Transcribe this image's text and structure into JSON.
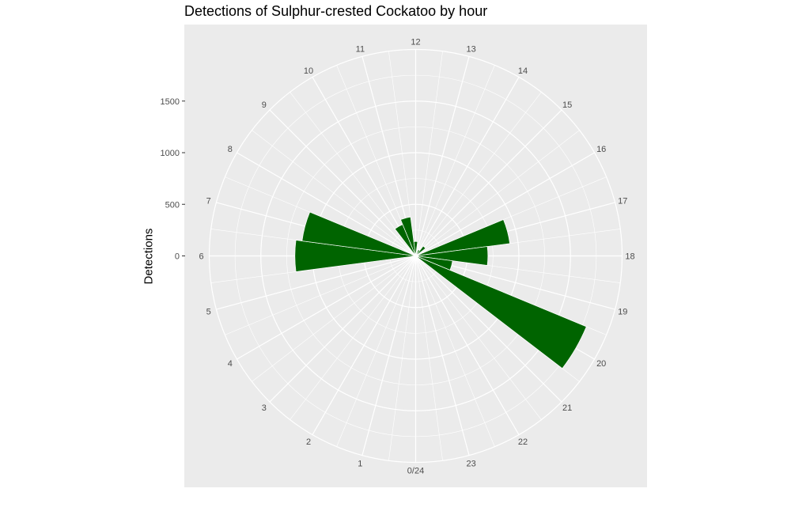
{
  "chart_data": {
    "type": "bar",
    "coord": "polar",
    "title": "Detections of Sulphur-crested Cockatoo by hour",
    "xlabel": "",
    "ylabel": "Detections",
    "categories": [
      "0/24",
      "1",
      "2",
      "3",
      "4",
      "5",
      "6",
      "7",
      "8",
      "9",
      "10",
      "11",
      "12",
      "13",
      "14",
      "15",
      "16",
      "17",
      "18",
      "19",
      "20",
      "21",
      "22",
      "23"
    ],
    "values": [
      0,
      0,
      0,
      0,
      0,
      0,
      1170,
      1110,
      0,
      0,
      330,
      380,
      140,
      30,
      65,
      120,
      20,
      920,
      700,
      360,
      1790,
      0,
      0,
      0
    ],
    "ylim": [
      0,
      2000
    ],
    "y_ticks": [
      "0",
      "500",
      "1000",
      "1500"
    ],
    "y_tick_values": [
      0,
      500,
      1000,
      1500
    ],
    "grid": true,
    "colors": {
      "bar": "#006400",
      "panel": "#ebebeb",
      "grid": "#ffffff"
    }
  }
}
